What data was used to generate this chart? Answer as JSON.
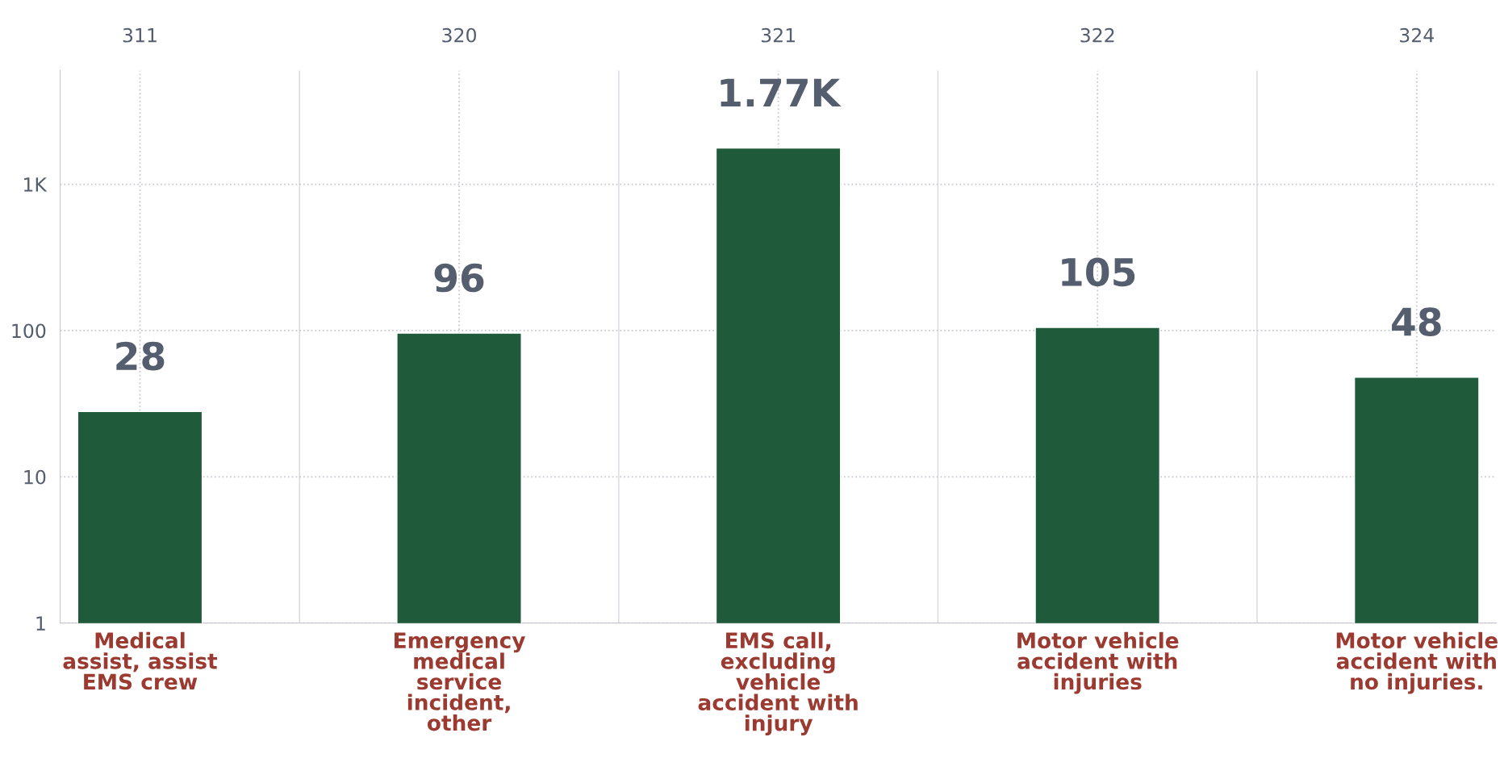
{
  "chart_data": {
    "type": "bar",
    "log": true,
    "categories": [
      "Medical assist, assist EMS crew",
      "Emergency medical service incident, other",
      "EMS call, excluding vehicle accident with injury",
      "Motor vehicle accident with injuries",
      "Motor vehicle accident with no injuries."
    ],
    "series": [
      {
        "color": "#1f5a3a",
        "values": [
          28,
          96,
          1770,
          105,
          48
        ],
        "value_labels": [
          "28",
          "96",
          "1.77K",
          "105",
          "48"
        ]
      }
    ],
    "ylim": [
      1,
      6000
    ],
    "yticks": [
      1,
      10,
      100,
      {
        "value": 1000,
        "label": "1K"
      }
    ],
    "annotations": [
      "311",
      "320",
      "321",
      "322",
      "324"
    ],
    "grid": true,
    "legend": false
  }
}
